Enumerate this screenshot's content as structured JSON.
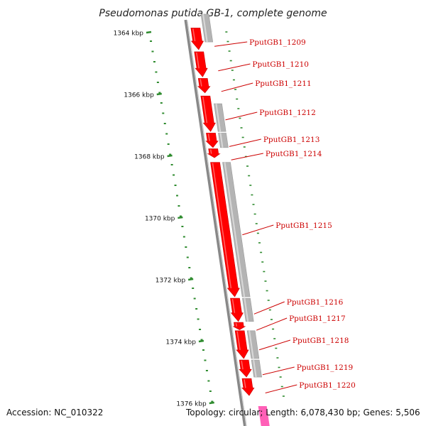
{
  "title": "Pseudomonas putida GB-1, complete genome",
  "footer": {
    "accession": "Accession: NC_010322",
    "summary": "Topology: circular; Length: 6,078,430 bp; Genes: 5,506"
  },
  "colors": {
    "gene_forward": "#ff0000",
    "gene_dark": "#cc0000",
    "cds_feature": "#b4b4b4",
    "backbone": "#888888",
    "tick": "#2e8b2e",
    "label": "#cc0000",
    "rna_feature": "#ff44aa"
  },
  "tick_labels": [
    {
      "kbp": 1364,
      "text": "1364 kbp"
    },
    {
      "kbp": 1366,
      "text": "1366 kbp"
    },
    {
      "kbp": 1368,
      "text": "1368 kbp"
    },
    {
      "kbp": 1370,
      "text": "1370 kbp"
    },
    {
      "kbp": 1372,
      "text": "1372 kbp"
    },
    {
      "kbp": 1374,
      "text": "1374 kbp"
    },
    {
      "kbp": 1376,
      "text": "1376 kbp"
    }
  ],
  "genes": [
    {
      "id": "PputGB1_1209",
      "start_kbp": 1363.85,
      "end_kbp": 1364.55
    },
    {
      "id": "PputGB1_1210",
      "start_kbp": 1364.62,
      "end_kbp": 1365.43
    },
    {
      "id": "PputGB1_1211",
      "start_kbp": 1365.48,
      "end_kbp": 1365.95
    },
    {
      "id": "PputGB1_1212",
      "start_kbp": 1366.05,
      "end_kbp": 1367.2
    },
    {
      "id": "PputGB1_1213",
      "start_kbp": 1367.25,
      "end_kbp": 1367.72
    },
    {
      "id": "PputGB1_1214",
      "start_kbp": 1367.76,
      "end_kbp": 1368.05
    },
    {
      "id": "PputGB1_1215",
      "start_kbp": 1368.2,
      "end_kbp": 1372.55
    },
    {
      "id": "PputGB1_1216",
      "start_kbp": 1372.6,
      "end_kbp": 1373.35
    },
    {
      "id": "PputGB1_1217",
      "start_kbp": 1373.38,
      "end_kbp": 1373.62
    },
    {
      "id": "PputGB1_1218",
      "start_kbp": 1373.65,
      "end_kbp": 1374.55
    },
    {
      "id": "PputGB1_1219",
      "start_kbp": 1374.6,
      "end_kbp": 1375.15
    },
    {
      "id": "PputGB1_1220",
      "start_kbp": 1375.2,
      "end_kbp": 1375.75
    }
  ]
}
